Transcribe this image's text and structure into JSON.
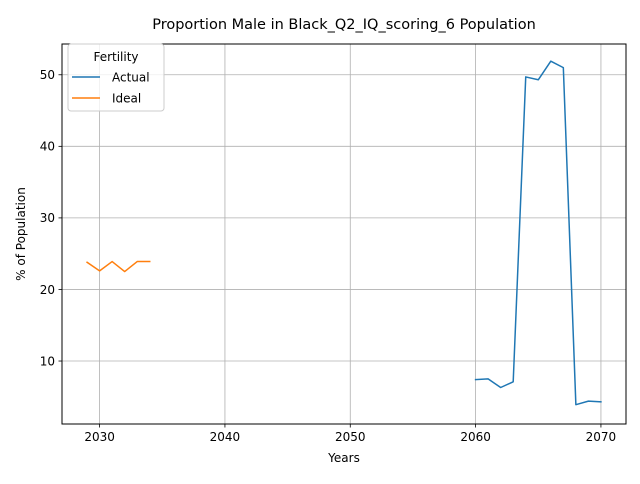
{
  "chart_data": {
    "type": "line",
    "title": "Proportion Male in Black_Q2_IQ_scoring_6 Population",
    "xlabel": "Years",
    "ylabel": "% of Population",
    "xlim": [
      2027,
      2072
    ],
    "ylim": [
      1.2,
      54.3
    ],
    "xticks": [
      2030,
      2040,
      2050,
      2060,
      2070
    ],
    "yticks": [
      10,
      20,
      30,
      40,
      50
    ],
    "grid": true,
    "legend": {
      "title": "Fertility",
      "placement": "top-left"
    },
    "series": [
      {
        "name": "Actual",
        "color": "#1f77b4",
        "x": [
          2060,
          2061,
          2062,
          2063,
          2064,
          2065,
          2066,
          2067,
          2068,
          2069,
          2070
        ],
        "y": [
          7.4,
          7.5,
          6.3,
          7.1,
          49.7,
          49.3,
          51.9,
          51.0,
          3.9,
          4.4,
          4.3
        ]
      },
      {
        "name": "Ideal",
        "color": "#ff7f0e",
        "x": [
          2029,
          2030,
          2031,
          2032,
          2033,
          2034
        ],
        "y": [
          23.8,
          22.6,
          23.9,
          22.5,
          23.9,
          23.9
        ]
      }
    ]
  }
}
